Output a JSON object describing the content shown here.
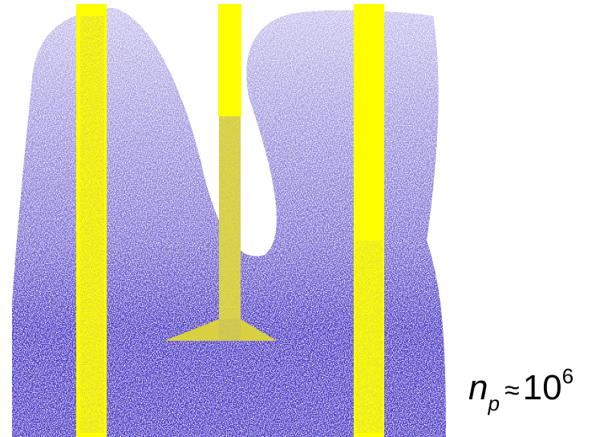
{
  "label": {
    "variable": "n",
    "subscript": "p",
    "relation": "≈",
    "base": "10",
    "exponent": "6"
  }
}
